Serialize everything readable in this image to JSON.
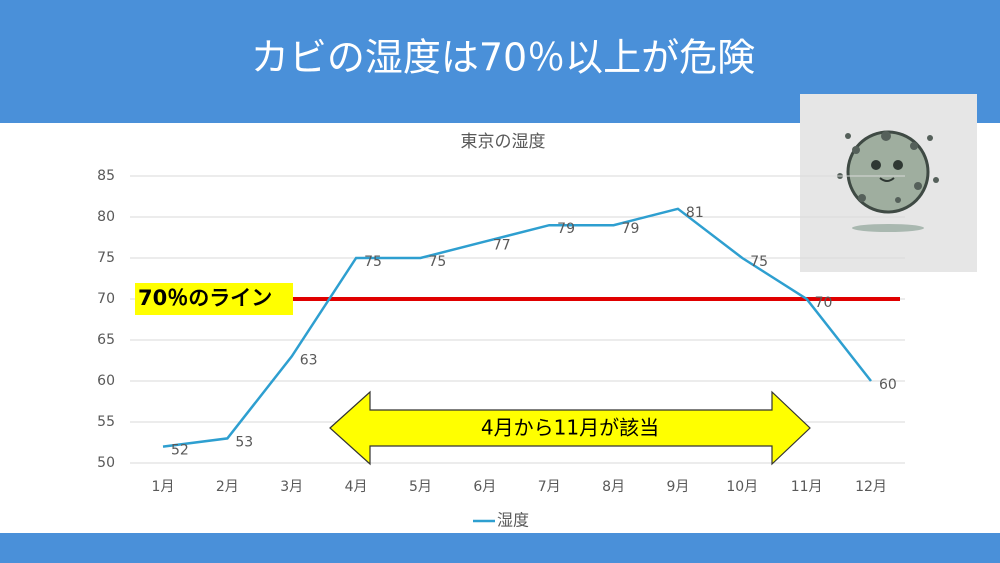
{
  "slide_title": "カビの湿度は70％以上が危険",
  "chart_data": {
    "type": "line",
    "title": "東京の湿度",
    "categories": [
      "1月",
      "2月",
      "3月",
      "4月",
      "5月",
      "6月",
      "7月",
      "8月",
      "9月",
      "10月",
      "11月",
      "12月"
    ],
    "series": [
      {
        "name": "湿度",
        "color": "#2e9fd0",
        "values": [
          52,
          53,
          63,
          75,
          75,
          77,
          79,
          79,
          81,
          75,
          70,
          60
        ]
      }
    ],
    "ylim": [
      50,
      85
    ],
    "yticks": [
      50,
      55,
      60,
      65,
      70,
      75,
      80,
      85
    ],
    "grid": true,
    "reference_line": {
      "value": 70,
      "label": "70％のライン",
      "color": "#e00000"
    },
    "annotation": "4月から11月が該当"
  }
}
